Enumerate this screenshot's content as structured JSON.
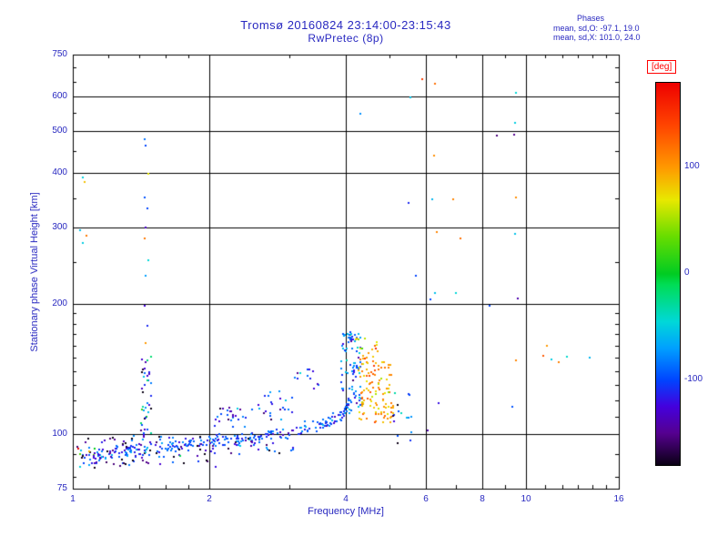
{
  "colors": {
    "text": "#2828c0",
    "axis": "#000000",
    "deg_label": "#ff0000",
    "background": "#ffffff"
  },
  "chart_data": {
    "type": "scatter",
    "title": "Tromsø 20160824 23:14:00-23:15:43",
    "subtitle": "RwPretec (8p)",
    "xlabel": "Frequency [MHz]",
    "ylabel": "Stationary phase Virtual Height [km]",
    "xscale": "log",
    "yscale": "log",
    "xlim": [
      1,
      16
    ],
    "ylim": [
      75,
      750
    ],
    "xticks": [
      1,
      2,
      4,
      6,
      8,
      10,
      16
    ],
    "yticks": [
      75,
      100,
      200,
      300,
      400,
      500,
      600,
      750
    ],
    "grid": true,
    "stats": {
      "header": "Phases",
      "o": "mean, sd,O: -97.1, 19.0",
      "x": "mean, sd,X: 101.0, 24.0"
    },
    "colorbar": {
      "label": "[deg]",
      "ticks": [
        100,
        0,
        -100
      ],
      "min": -180,
      "max": 180,
      "position": "right",
      "stops": [
        [
          -180,
          "#0a0014"
        ],
        [
          -150,
          "#55008f"
        ],
        [
          -125,
          "#4400dd"
        ],
        [
          -100,
          "#0044ff"
        ],
        [
          -70,
          "#00a0ff"
        ],
        [
          -45,
          "#00d8d8"
        ],
        [
          -10,
          "#00dd55"
        ],
        [
          0,
          "#00cc22"
        ],
        [
          35,
          "#66dd00"
        ],
        [
          70,
          "#e8e800"
        ],
        [
          100,
          "#ff9900"
        ],
        [
          140,
          "#ff4400"
        ],
        [
          180,
          "#ee0000"
        ]
      ]
    },
    "seed": 20160824,
    "trace": {
      "comment": "main O-mode echo trace: control points [MHz, km], phase ~ -100 deg",
      "control": [
        [
          1.03,
          87
        ],
        [
          1.2,
          90
        ],
        [
          1.5,
          93
        ],
        [
          1.8,
          95
        ],
        [
          2.2,
          97
        ],
        [
          2.6,
          99
        ],
        [
          3.0,
          101
        ],
        [
          3.4,
          104
        ],
        [
          3.7,
          107
        ],
        [
          3.95,
          112
        ],
        [
          4.1,
          120
        ]
      ],
      "n": 300,
      "h_sd": 2.2,
      "phase_mean": -98,
      "phase_sd": 20
    },
    "clusters": [
      {
        "name": "understory-low",
        "f": [
          1.05,
          2.1
        ],
        "h": [
          83,
          99
        ],
        "n": 70,
        "phase": [
          -140,
          45
        ]
      },
      {
        "name": "understory-mid",
        "f": [
          2.2,
          3.1
        ],
        "h": [
          90,
          98
        ],
        "n": 18,
        "phase": [
          -130,
          40
        ]
      },
      {
        "name": "bump-2p2",
        "f": [
          2.05,
          2.5
        ],
        "h": [
          104,
          116
        ],
        "n": 26,
        "phase": [
          -110,
          30
        ]
      },
      {
        "name": "bump-2p8",
        "f": [
          2.55,
          3.15
        ],
        "h": [
          108,
          126
        ],
        "n": 22,
        "phase": [
          -100,
          30
        ]
      },
      {
        "name": "bump-3p2",
        "f": [
          3.05,
          3.5
        ],
        "h": [
          126,
          143
        ],
        "n": 12,
        "phase": [
          -105,
          35
        ]
      },
      {
        "name": "o-mode-tail",
        "f": [
          3.9,
          4.32
        ],
        "h": [
          112,
          172
        ],
        "n": 85,
        "phase": [
          -85,
          30
        ]
      },
      {
        "name": "x-mode",
        "f": [
          4.25,
          5.1
        ],
        "h": [
          106,
          152
        ],
        "n": 115,
        "phase": [
          101,
          24
        ]
      },
      {
        "name": "x-mode-upper",
        "f": [
          4.2,
          4.75
        ],
        "h": [
          150,
          168
        ],
        "n": 14,
        "phase": [
          90,
          35
        ]
      },
      {
        "name": "right-dark",
        "f": [
          4.95,
          5.65
        ],
        "h": [
          94,
          128
        ],
        "n": 16,
        "phase": [
          -120,
          60
        ]
      },
      {
        "name": "column-1p45",
        "f": [
          1.41,
          1.5
        ],
        "h": [
          90,
          152
        ],
        "n": 40,
        "phase": [
          -110,
          55
        ]
      },
      {
        "name": "left-edge-low",
        "f": [
          1.02,
          1.12
        ],
        "h": [
          84,
          96
        ],
        "n": 8,
        "phase": [
          0,
          140
        ]
      }
    ],
    "points": [
      [
        1.45,
        162,
        100
      ],
      [
        1.46,
        178,
        -110
      ],
      [
        1.44,
        198,
        -125
      ],
      [
        1.45,
        232,
        -70
      ],
      [
        1.47,
        252,
        -45
      ],
      [
        1.44,
        283,
        115
      ],
      [
        1.45,
        300,
        -130
      ],
      [
        1.46,
        332,
        -100
      ],
      [
        1.44,
        352,
        -95
      ],
      [
        1.47,
        398,
        70
      ],
      [
        1.45,
        462,
        -100
      ],
      [
        1.44,
        478,
        -85
      ],
      [
        1.05,
        276,
        -50
      ],
      [
        1.07,
        287,
        115
      ],
      [
        1.04,
        296,
        -55
      ],
      [
        1.06,
        382,
        85
      ],
      [
        1.05,
        391,
        -48
      ],
      [
        4.3,
        548,
        -75
      ],
      [
        5.55,
        598,
        -55
      ],
      [
        5.9,
        658,
        145
      ],
      [
        6.3,
        642,
        120
      ],
      [
        6.25,
        438,
        105
      ],
      [
        6.2,
        348,
        -60
      ],
      [
        6.35,
        292,
        110
      ],
      [
        6.3,
        212,
        -55
      ],
      [
        6.15,
        205,
        -100
      ],
      [
        6.4,
        118,
        -120
      ],
      [
        6.05,
        102,
        -140
      ],
      [
        6.9,
        348,
        110
      ],
      [
        7.15,
        283,
        120
      ],
      [
        7.0,
        212,
        -45
      ],
      [
        8.3,
        198,
        -100
      ],
      [
        8.6,
        488,
        -155
      ],
      [
        9.5,
        612,
        -45
      ],
      [
        9.45,
        522,
        -50
      ],
      [
        9.4,
        490,
        -150
      ],
      [
        9.5,
        352,
        105
      ],
      [
        9.45,
        290,
        -55
      ],
      [
        9.6,
        206,
        -140
      ],
      [
        9.5,
        148,
        110
      ],
      [
        9.3,
        116,
        -95
      ],
      [
        10.9,
        152,
        130
      ],
      [
        11.1,
        160,
        100
      ],
      [
        11.35,
        149,
        -50
      ],
      [
        11.8,
        147,
        112
      ],
      [
        12.3,
        151,
        -42
      ],
      [
        13.8,
        150,
        -60
      ],
      [
        5.5,
        342,
        -110
      ],
      [
        5.7,
        232,
        -100
      ]
    ]
  }
}
